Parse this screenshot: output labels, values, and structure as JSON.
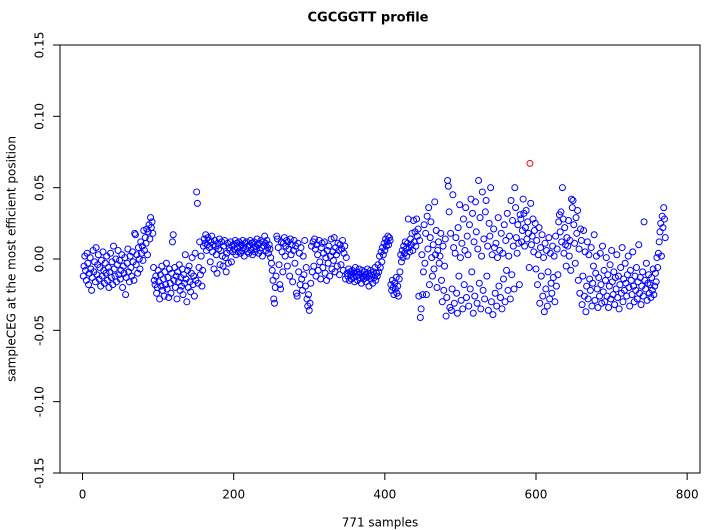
{
  "chart_data": {
    "type": "scatter",
    "title": "CGCGGTT profile",
    "xlabel": "771 samples",
    "ylabel": "sampleCEG at the most efficient position",
    "xlim": [
      -29.8,
      817
    ],
    "ylim": [
      -0.15,
      0.15
    ],
    "xticks": [
      0,
      200,
      400,
      600,
      800
    ],
    "yticks": [
      -0.15,
      {
        "value": -0.1,
        "label": "-0.10"
      },
      -0.05,
      {
        "value": 0,
        "label": "0.00"
      },
      0.05,
      {
        "value": 0.1,
        "label": "0.10"
      },
      0.15
    ],
    "color": "#0000ff",
    "highlight": {
      "x": 592,
      "value": 0.067,
      "color": "#ff0000"
    },
    "x": [
      1,
      2,
      3,
      4,
      5,
      6,
      7,
      8,
      9,
      10,
      11,
      12,
      13,
      14,
      15,
      16,
      17,
      18,
      19,
      20,
      21,
      22,
      23,
      24,
      25,
      26,
      27,
      28,
      29,
      30,
      31,
      32,
      33,
      34,
      35,
      36,
      37,
      38,
      39,
      40,
      41,
      42,
      43,
      44,
      45,
      46,
      47,
      48,
      49,
      50,
      51,
      52,
      53,
      54,
      55,
      56,
      57,
      58,
      59,
      60,
      61,
      62,
      63,
      64,
      65,
      66,
      67,
      68,
      69,
      70,
      71,
      72,
      73,
      74,
      75,
      76,
      77,
      78,
      79,
      80,
      81,
      82,
      83,
      84,
      85,
      86,
      87,
      88,
      89,
      90,
      91,
      92,
      93,
      94,
      95,
      96,
      97,
      98,
      99,
      100,
      101,
      102,
      103,
      104,
      105,
      106,
      107,
      108,
      109,
      110,
      111,
      112,
      113,
      114,
      115,
      116,
      117,
      118,
      119,
      120,
      121,
      122,
      123,
      124,
      125,
      126,
      127,
      128,
      129,
      130,
      131,
      132,
      133,
      134,
      135,
      136,
      137,
      138,
      139,
      140,
      141,
      142,
      143,
      144,
      145,
      146,
      147,
      148,
      149,
      150,
      151,
      152,
      153,
      154,
      155,
      156,
      157,
      158,
      159,
      160,
      161,
      162,
      163,
      164,
      165,
      166,
      167,
      168,
      169,
      170,
      171,
      172,
      173,
      174,
      175,
      176,
      177,
      178,
      179,
      180,
      181,
      182,
      183,
      184,
      185,
      186,
      187,
      188,
      189,
      190,
      191,
      192,
      193,
      194,
      195,
      196,
      197,
      198,
      199,
      200,
      201,
      202,
      203,
      204,
      205,
      206,
      207,
      208,
      209,
      210,
      211,
      212,
      213,
      214,
      215,
      216,
      217,
      218,
      219,
      220,
      221,
      222,
      223,
      224,
      225,
      226,
      227,
      228,
      229,
      230,
      231,
      232,
      233,
      234,
      235,
      236,
      237,
      238,
      239,
      240,
      241,
      242,
      243,
      244,
      245,
      246,
      247,
      248,
      249,
      250,
      251,
      252,
      253,
      254,
      255,
      256,
      257,
      258,
      259,
      260,
      261,
      262,
      263,
      264,
      265,
      266,
      267,
      268,
      269,
      270,
      271,
      272,
      273,
      274,
      275,
      276,
      277,
      278,
      279,
      280,
      281,
      282,
      283,
      284,
      285,
      286,
      287,
      288,
      289,
      290,
      291,
      292,
      293,
      294,
      295,
      296,
      297,
      298,
      299,
      300,
      301,
      302,
      303,
      304,
      305,
      306,
      307,
      308,
      309,
      310,
      311,
      312,
      313,
      314,
      315,
      316,
      317,
      318,
      319,
      320,
      321,
      322,
      323,
      324,
      325,
      326,
      327,
      328,
      329,
      330,
      331,
      332,
      333,
      334,
      335,
      336,
      337,
      338,
      339,
      340,
      341,
      342,
      343,
      344,
      345,
      346,
      347,
      348,
      349,
      350,
      351,
      352,
      353,
      354,
      355,
      356,
      357,
      358,
      359,
      360,
      361,
      362,
      363,
      364,
      365,
      366,
      367,
      368,
      369,
      370,
      371,
      372,
      373,
      374,
      375,
      376,
      377,
      378,
      379,
      380,
      381,
      382,
      383,
      384,
      385,
      386,
      387,
      388,
      389,
      390,
      391,
      392,
      393,
      394,
      395,
      396,
      397,
      398,
      399,
      400,
      401,
      402,
      403,
      404,
      405,
      406,
      407,
      408,
      409,
      410,
      411,
      412,
      413,
      414,
      415,
      416,
      417,
      418,
      419,
      420,
      421,
      422,
      423,
      424,
      425,
      426,
      427,
      428,
      429,
      430,
      431,
      432,
      433,
      434,
      435,
      436,
      437,
      438,
      439,
      440,
      441,
      442,
      443,
      444,
      445,
      446,
      447,
      448,
      449,
      450,
      451,
      452,
      453,
      454,
      455,
      456,
      457,
      458,
      459,
      460,
      461,
      462,
      463,
      464,
      465,
      466,
      467,
      468,
      469,
      470,
      471,
      472,
      473,
      474,
      475,
      476,
      477,
      478,
      479,
      480,
      481,
      482,
      483,
      484,
      485,
      486,
      487,
      488,
      489,
      490,
      491,
      492,
      493,
      494,
      495,
      496,
      497,
      498,
      499,
      500,
      501,
      502,
      503,
      504,
      505,
      506,
      507,
      508,
      509,
      510,
      511,
      512,
      513,
      514,
      515,
      516,
      517,
      518,
      519,
      520,
      521,
      522,
      523,
      524,
      525,
      526,
      527,
      528,
      529,
      530,
      531,
      532,
      533,
      534,
      535,
      536,
      537,
      538,
      539,
      540,
      541,
      542,
      543,
      544,
      545,
      546,
      547,
      548,
      549,
      550,
      551,
      552,
      553,
      554,
      555,
      556,
      557,
      558,
      559,
      560,
      561,
      562,
      563,
      564,
      565,
      566,
      567,
      568,
      569,
      570,
      571,
      572,
      573,
      574,
      575,
      576,
      577,
      578,
      579,
      580,
      581,
      582,
      583,
      584,
      585,
      586,
      587,
      588,
      589,
      590,
      591,
      593,
      594,
      595,
      596,
      597,
      598,
      599,
      600,
      601,
      602,
      603,
      604,
      605,
      606,
      607,
      608,
      609,
      610,
      611,
      612,
      613,
      614,
      615,
      616,
      617,
      618,
      619,
      620,
      621,
      622,
      623,
      624,
      625,
      626,
      627,
      628,
      629,
      630,
      631,
      632,
      633,
      634,
      635,
      636,
      637,
      638,
      639,
      640,
      641,
      642,
      643,
      644,
      645,
      646,
      647,
      648,
      649,
      650,
      651,
      652,
      653,
      654,
      655,
      656,
      657,
      658,
      659,
      660,
      661,
      662,
      663,
      664,
      665,
      666,
      667,
      668,
      669,
      670,
      671,
      672,
      673,
      674,
      675,
      676,
      677,
      678,
      679,
      680,
      681,
      682,
      683,
      684,
      685,
      686,
      687,
      688,
      689,
      690,
      691,
      692,
      693,
      694,
      695,
      696,
      697,
      698,
      699,
      700,
      701,
      702,
      703,
      704,
      705,
      706,
      707,
      708,
      709,
      710,
      711,
      712,
      713,
      714,
      715,
      716,
      717,
      718,
      719,
      720,
      721,
      722,
      723,
      724,
      725,
      726,
      727,
      728,
      729,
      730,
      731,
      732,
      733,
      734,
      735,
      736,
      737,
      738,
      739,
      740,
      741,
      742,
      743,
      744,
      745,
      746,
      747,
      748,
      749,
      750,
      751,
      752,
      753,
      754,
      755,
      756,
      757,
      758,
      759,
      760,
      761,
      762,
      763,
      764,
      765,
      766,
      767,
      768,
      769,
      770,
      771
    ],
    "values": [
      -0.012,
      -0.005,
      0.002,
      -0.008,
      -0.015,
      0.004,
      -0.003,
      -0.018,
      -0.01,
      0.001,
      -0.007,
      -0.022,
      -0.013,
      0.006,
      -0.009,
      -0.002,
      -0.016,
      0.008,
      -0.011,
      -0.004,
      0.003,
      -0.014,
      -0.006,
      -0.019,
      -0.001,
      -0.012,
      0.005,
      -0.008,
      -0.017,
      -0.003,
      -0.01,
      0.002,
      -0.015,
      -0.006,
      -0.02,
      -0.009,
      0.004,
      -0.013,
      -0.002,
      -0.018,
      0.009,
      -0.007,
      -0.012,
      0,
      -0.016,
      -0.004,
      0.006,
      -0.011,
      -0.001,
      -0.014,
      -0.008,
      0.003,
      -0.02,
      -0.005,
      -0.01,
      0.001,
      -0.025,
      -0.013,
      -0.003,
      0.007,
      -0.009,
      -0.016,
      0.002,
      -0.006,
      -0.012,
      0.005,
      -0.002,
      -0.015,
      0.018,
      0.017,
      -0.004,
      0.003,
      -0.01,
      0.008,
      0,
      -0.007,
      0.012,
      0.004,
      0.009,
      -0.001,
      0.02,
      0.006,
      0.015,
      0.011,
      0.021,
      0.003,
      0.019,
      0.024,
      0.014,
      0.029,
      0.022,
      0.026,
      0.018,
      -0.006,
      -0.015,
      -0.018,
      -0.012,
      -0.024,
      -0.02,
      -0.008,
      -0.016,
      -0.028,
      -0.011,
      -0.019,
      -0.005,
      -0.022,
      -0.014,
      -0.026,
      -0.009,
      -0.018,
      -0.003,
      -0.021,
      -0.013,
      -0.027,
      -0.007,
      -0.017,
      -0.024,
      -0.01,
      0.012,
      0.017,
      -0.015,
      -0.006,
      -0.02,
      -0.012,
      -0.028,
      -0.009,
      -0.016,
      -0.004,
      -0.022,
      -0.013,
      -0.019,
      -0.007,
      -0.025,
      -0.011,
      -0.017,
      0.003,
      -0.014,
      -0.03,
      -0.008,
      -0.02,
      -0.005,
      -0.016,
      -0.023,
      -0.01,
      0.001,
      -0.018,
      -0.012,
      -0.026,
      0.004,
      -0.015,
      0.047,
      0.039,
      -0.017,
      -0.006,
      0.012,
      -0.011,
      0.002,
      -0.019,
      -0.008,
      0.009,
      0.014,
      0.011,
      0.017,
      0.006,
      0.01,
      0.015,
      0.013,
      0.008,
      -0.002,
      0.012,
      0.016,
      0.005,
      0.01,
      -0.007,
      0.013,
      0.009,
      0.003,
      -0.01,
      0.011,
      0.007,
      0.014,
      -0.004,
      0.006,
      0.012,
      0.002,
      -0.005,
      0.009,
      0.013,
      0.001,
      -0.009,
      0.004,
      0.011,
      -0.003,
      0.008,
      0.006,
      0.012,
      -0.002,
      0.009,
      0.005,
      0.01,
      0.007,
      0.013,
      0.003,
      0.011,
      0.008,
      0.005,
      0.012,
      0.009,
      0.004,
      0.01,
      0.006,
      0.013,
      0.008,
      0.002,
      0.011,
      0.007,
      0.012,
      0.005,
      0.009,
      0.004,
      0.01,
      0.013,
      0.006,
      0.011,
      0.003,
      0.008,
      0.012,
      0.005,
      0.009,
      0.007,
      0.014,
      0.01,
      0.004,
      0.011,
      0.006,
      0.013,
      0.008,
      0.002,
      0.012,
      0.009,
      0.016,
      0.011,
      0.006,
      0.013,
      0.008,
      0.004,
      0.01,
      0.007,
      0.001,
      -0.003,
      -0.008,
      -0.015,
      -0.028,
      -0.031,
      -0.02,
      -0.012,
      0.016,
      0.014,
      0.008,
      -0.004,
      -0.018,
      -0.021,
      0.012,
      0.005,
      -0.009,
      0.011,
      0.015,
      0.002,
      0.009,
      0.013,
      -0.005,
      0.012,
      0.007,
      -0.012,
      0.014,
      0.003,
      0.01,
      -0.016,
      0.006,
      0.013,
      -0.003,
      0.009,
      -0.024,
      -0.026,
      0.011,
      -0.009,
      0.004,
      -0.018,
      0.008,
      -0.014,
      -0.022,
      0.002,
      -0.011,
      0.013,
      -0.019,
      -0.006,
      -0.028,
      -0.033,
      -0.025,
      -0.036,
      -0.031,
      -0.017,
      0.009,
      -0.009,
      0.012,
      -0.005,
      0.014,
      0.007,
      -0.012,
      0.01,
      0.003,
      -0.008,
      0.013,
      -0.002,
      -0.014,
      0.008,
      0.011,
      -0.006,
      0.004,
      0.012,
      -0.01,
      0.001,
      -0.015,
      0.006,
      -0.003,
      0.009,
      -0.012,
      0.002,
      0.014,
      -0.007,
      0.005,
      -0.001,
      0.015,
      -0.009,
      0.008,
      0.003,
      -0.005,
      0.011,
      0.006,
      -0.011,
      0.01,
      -0.004,
      0.007,
      0.013,
      -0.008,
      0.004,
      0.009,
      -0.014,
      0.001,
      -0.01,
      -0.012,
      -0.007,
      -0.015,
      -0.009,
      -0.011,
      -0.014,
      -0.008,
      -0.013,
      -0.01,
      -0.016,
      -0.006,
      -0.012,
      -0.009,
      -0.015,
      -0.011,
      -0.007,
      -0.013,
      -0.01,
      -0.017,
      -0.008,
      -0.012,
      -0.014,
      -0.009,
      -0.011,
      -0.016,
      -0.013,
      -0.007,
      -0.01,
      -0.019,
      -0.012,
      -0.008,
      -0.014,
      -0.011,
      -0.017,
      -0.009,
      -0.013,
      -0.006,
      -0.015,
      -0.01,
      -0.012,
      -0.004,
      -0.009,
      0.002,
      -0.006,
      0.005,
      -0.002,
      0.008,
      0.003,
      0.011,
      0.006,
      0.014,
      0.009,
      0.012,
      0.016,
      0.01,
      0.015,
      0.013,
      -0.018,
      -0.022,
      -0.015,
      -0.02,
      -0.025,
      -0.017,
      -0.021,
      -0.013,
      -0.024,
      -0.019,
      -0.026,
      -0.014,
      -0.009,
      0.003,
      -0.002,
      0.006,
      0.001,
      0.009,
      0.004,
      0.012,
      0.007,
      0.002,
      0.011,
      0.028,
      0.008,
      0.005,
      0.014,
      0.01,
      0.018,
      0.006,
      0.027,
      0.012,
      0.019,
      0.009,
      0.028,
      0.016,
      0.021,
      -0.026,
      0.013,
      -0.041,
      -0.035,
      0.003,
      -0.025,
      -0.009,
      0.024,
      -0.003,
      0.018,
      -0.025,
      0.03,
      0.007,
      0.036,
      -0.018,
      0.015,
      0.026,
      0.001,
      -0.012,
      0.01,
      -0.007,
      0.04,
      0.003,
      0.02,
      -0.02,
      0.006,
      0.012,
      -0.003,
      0.002,
      0.018,
      -0.015,
      -0.03,
      0.009,
      -0.022,
      -0.005,
      0.014,
      -0.04,
      -0.027,
      0.055,
      0.051,
      0.033,
      -0.034,
      0.018,
      -0.036,
      -0.021,
      0.045,
      0.008,
      -0.031,
      0.004,
      0.015,
      -0.024,
      -0.038,
      0.022,
      -0.012,
      0.038,
      0.001,
      -0.029,
      0.011,
      -0.035,
      0.028,
      -0.018,
      0.006,
      0.036,
      -0.027,
      0.016,
      0.003,
      -0.033,
      0.024,
      -0.021,
      0.042,
      -0.009,
      0.032,
      -0.038,
      0.012,
      -0.026,
      0.04,
      0.019,
      -0.031,
      0.007,
      0.055,
      -0.017,
      0.029,
      -0.035,
      0.002,
      0.047,
      -0.022,
      0.014,
      -0.028,
      0.033,
      0.041,
      -0.012,
      0.009,
      -0.036,
      0.025,
      0.016,
      0.05,
      -0.03,
      0.003,
      -0.039,
      0.021,
      0.008,
      -0.024,
      0.011,
      -0.033,
      0.001,
      0.029,
      -0.019,
      0.006,
      -0.027,
      0.018,
      -0.035,
      0.004,
      -0.014,
      0.024,
      -0.03,
      0.013,
      -0.008,
      0.032,
      -0.022,
      0.002,
      0.016,
      -0.028,
      0.041,
      -0.011,
      0.027,
      0.009,
      -0.021,
      0.05,
      0.036,
      0.015,
      0.004,
      0.024,
      0.011,
      -0.018,
      0.031,
      0.028,
      0.012,
      0.02,
      0.042,
      0.032,
      0.009,
      0.022,
      0.034,
      0.014,
      0.026,
      0.018,
      -0.006,
      0.039,
      0.01,
      0.016,
      0.028,
      0.005,
      0.02,
      0.025,
      -0.007,
      0.013,
      -0.018,
      0.003,
      0.022,
      -0.031,
      0.008,
      -0.012,
      0.017,
      -0.026,
      0.001,
      -0.037,
      0.011,
      -0.021,
      0.006,
      -0.033,
      -0.009,
      0.015,
      -0.028,
      0.004,
      -0.017,
      -0.024,
      0.009,
      -0.013,
      0.002,
      -0.03,
      0.016,
      -0.019,
      0.007,
      -0.011,
      0.026,
      0.031,
      0.019,
      0.033,
      0.012,
      0.05,
      0.028,
      0.004,
      0.022,
      0.01,
      -0.005,
      0.015,
      0.009,
      0.027,
      0.002,
      0.013,
      -0.008,
      0.042,
      0.036,
      0.041,
      0.024,
      0.011,
      -0.003,
      0.029,
      0.018,
      0.034,
      -0.015,
      0.007,
      -0.024,
      0.021,
      0.013,
      -0.032,
      -0.012,
      0.02,
      -0.026,
      0.005,
      -0.037,
      -0.019,
      0.012,
      -0.028,
      0.003,
      -0.014,
      -0.022,
      0.008,
      -0.033,
      -0.017,
      -0.005,
      0.017,
      -0.029,
      -0.01,
      0.002,
      -0.021,
      -0.034,
      -0.013,
      -0.026,
      0.004,
      -0.018,
      -0.031,
      0.009,
      -0.023,
      -0.008,
      -0.03,
      -0.015,
      0.001,
      -0.026,
      -0.011,
      -0.034,
      -0.019,
      -0.004,
      -0.028,
      0.006,
      -0.016,
      -0.025,
      -0.009,
      -0.032,
      -0.013,
      -0.021,
      0.003,
      -0.027,
      -0.012,
      -0.035,
      -0.018,
      -0.006,
      -0.024,
      0.008,
      -0.03,
      -0.014,
      -0.022,
      -0.003,
      -0.017,
      -0.026,
      -0.011,
      0.002,
      -0.02,
      -0.033,
      -0.008,
      -0.015,
      -0.025,
      0.005,
      -0.019,
      -0.03,
      -0.012,
      -0.022,
      -0.006,
      -0.028,
      -0.016,
      0.01,
      -0.024,
      -0.013,
      -0.032,
      -0.019,
      -0.009,
      -0.026,
      0.026,
      -0.015,
      -0.021,
      -0.003,
      -0.029,
      -0.017,
      -0.011,
      -0.024,
      -0.018,
      -0.027,
      -0.013,
      -0.022,
      -0.007,
      -0.025,
      -0.019,
      -0.01,
      -0.016,
      0.001,
      -0.006,
      0.004,
      0.012,
      0.019,
      0.025,
      0.002,
      0.03,
      0.022,
      0.036,
      0.028,
      0.015
    ]
  }
}
